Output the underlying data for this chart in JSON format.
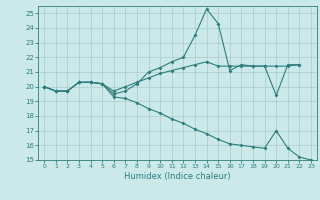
{
  "xlabel": "Humidex (Indice chaleur)",
  "background_color": "#cce9e9",
  "grid_color": "#aacccc",
  "line_color": "#2d7d7d",
  "xlim": [
    -0.5,
    23.5
  ],
  "ylim": [
    15,
    25.5
  ],
  "yticks": [
    15,
    16,
    17,
    18,
    19,
    20,
    21,
    22,
    23,
    24,
    25
  ],
  "xticks": [
    0,
    1,
    2,
    3,
    4,
    5,
    6,
    7,
    8,
    9,
    10,
    11,
    12,
    13,
    14,
    15,
    16,
    17,
    18,
    19,
    20,
    21,
    22,
    23
  ],
  "line1_x": [
    0,
    1,
    2,
    3,
    4,
    5,
    6,
    7,
    8,
    9,
    10,
    11,
    12,
    13,
    14,
    15,
    16,
    17,
    18,
    19,
    20,
    21,
    22
  ],
  "line1_y": [
    20.0,
    19.7,
    19.7,
    20.3,
    20.3,
    20.2,
    19.5,
    19.7,
    20.2,
    21.0,
    21.3,
    21.7,
    22.0,
    23.5,
    25.3,
    24.3,
    21.1,
    21.5,
    21.4,
    21.4,
    19.4,
    21.5,
    21.5
  ],
  "line2_x": [
    0,
    1,
    2,
    3,
    4,
    5,
    6,
    7,
    8,
    9,
    10,
    11,
    12,
    13,
    14,
    15,
    16,
    17,
    18,
    19,
    20,
    21,
    22
  ],
  "line2_y": [
    20.0,
    19.7,
    19.7,
    20.3,
    20.3,
    20.2,
    19.7,
    20.0,
    20.3,
    20.6,
    20.9,
    21.1,
    21.3,
    21.5,
    21.7,
    21.4,
    21.4,
    21.4,
    21.4,
    21.4,
    21.4,
    21.4,
    21.5
  ],
  "line3_x": [
    0,
    1,
    2,
    3,
    4,
    5,
    6,
    7,
    8,
    9,
    10,
    11,
    12,
    13,
    14,
    15,
    16,
    17,
    18,
    19,
    20,
    21,
    22,
    23
  ],
  "line3_y": [
    20.0,
    19.7,
    19.7,
    20.3,
    20.3,
    20.2,
    19.3,
    19.2,
    18.9,
    18.5,
    18.2,
    17.8,
    17.5,
    17.1,
    16.8,
    16.4,
    16.1,
    16.0,
    15.9,
    15.8,
    17.0,
    15.8,
    15.2,
    15.0
  ]
}
